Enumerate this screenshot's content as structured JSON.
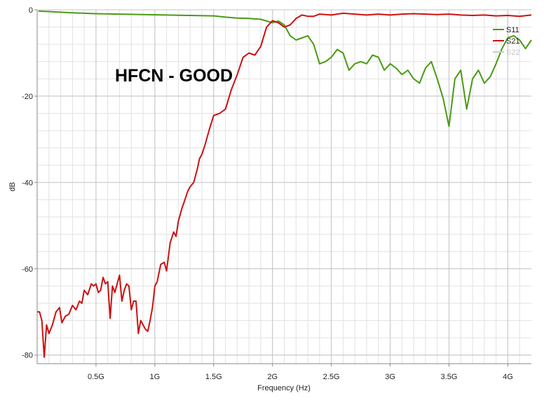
{
  "chart_data": {
    "type": "line",
    "annotation": "HFCN - GOOD",
    "xlabel": "Frequency (Hz)",
    "ylabel": "dB",
    "xlim": [
      0,
      4.2
    ],
    "ylim": [
      -82,
      0
    ],
    "xticks": [
      {
        "v": 0.5,
        "label": "0.5G"
      },
      {
        "v": 1.0,
        "label": "1G"
      },
      {
        "v": 1.5,
        "label": "1.5G"
      },
      {
        "v": 2.0,
        "label": "2G"
      },
      {
        "v": 2.5,
        "label": "2.5G"
      },
      {
        "v": 3.0,
        "label": "3G"
      },
      {
        "v": 3.5,
        "label": "3.5G"
      },
      {
        "v": 4.0,
        "label": "4G"
      }
    ],
    "yticks": [
      {
        "v": 0,
        "label": "0"
      },
      {
        "v": -20,
        "label": "-20"
      },
      {
        "v": -40,
        "label": "-40"
      },
      {
        "v": -60,
        "label": "-60"
      },
      {
        "v": -80,
        "label": "-80"
      }
    ],
    "grid": true,
    "legend_position": "top-right",
    "series": [
      {
        "name": "S11",
        "color": "#4a9a14",
        "visible": true,
        "x": [
          0.01,
          0.1,
          0.3,
          0.5,
          0.7,
          0.9,
          1.1,
          1.3,
          1.5,
          1.6,
          1.7,
          1.8,
          1.9,
          2.0,
          2.05,
          2.1,
          2.15,
          2.2,
          2.25,
          2.3,
          2.35,
          2.4,
          2.45,
          2.5,
          2.55,
          2.6,
          2.65,
          2.7,
          2.75,
          2.8,
          2.85,
          2.9,
          2.95,
          3.0,
          3.05,
          3.1,
          3.15,
          3.2,
          3.25,
          3.3,
          3.35,
          3.4,
          3.45,
          3.5,
          3.55,
          3.6,
          3.65,
          3.7,
          3.75,
          3.8,
          3.85,
          3.9,
          3.95,
          4.0,
          4.05,
          4.1,
          4.15,
          4.2
        ],
        "y": [
          -0.3,
          -0.4,
          -0.7,
          -0.9,
          -1.0,
          -1.1,
          -1.2,
          -1.3,
          -1.4,
          -1.7,
          -1.9,
          -2.0,
          -2.2,
          -3.0,
          -2.6,
          -3.5,
          -6.0,
          -7.0,
          -6.5,
          -6.0,
          -8.0,
          -12.5,
          -12.0,
          -11.0,
          -9.2,
          -10.0,
          -14.0,
          -12.5,
          -12.0,
          -12.5,
          -10.5,
          -11.0,
          -14.0,
          -12.5,
          -13.5,
          -15.0,
          -14.0,
          -16.0,
          -17.0,
          -13.5,
          -12.0,
          -16.0,
          -20.5,
          -27.0,
          -16.0,
          -14.0,
          -23.0,
          -16.0,
          -14.0,
          -17.0,
          -15.5,
          -12.5,
          -9.0,
          -6.5,
          -6.0,
          -7.0,
          -9.0,
          -7.0
        ]
      },
      {
        "name": "S21",
        "color": "#cc1111",
        "visible": true,
        "x": [
          0.0,
          0.02,
          0.04,
          0.06,
          0.08,
          0.1,
          0.13,
          0.16,
          0.19,
          0.21,
          0.24,
          0.27,
          0.3,
          0.33,
          0.36,
          0.38,
          0.4,
          0.43,
          0.46,
          0.48,
          0.5,
          0.52,
          0.54,
          0.56,
          0.58,
          0.6,
          0.62,
          0.64,
          0.66,
          0.68,
          0.7,
          0.72,
          0.74,
          0.76,
          0.78,
          0.8,
          0.82,
          0.84,
          0.86,
          0.88,
          0.9,
          0.92,
          0.94,
          0.96,
          0.98,
          1.0,
          1.02,
          1.05,
          1.08,
          1.1,
          1.13,
          1.16,
          1.18,
          1.2,
          1.23,
          1.25,
          1.28,
          1.3,
          1.33,
          1.36,
          1.38,
          1.4,
          1.43,
          1.46,
          1.5,
          1.55,
          1.6,
          1.65,
          1.7,
          1.75,
          1.8,
          1.85,
          1.9,
          1.95,
          2.0,
          2.05,
          2.1,
          2.15,
          2.2,
          2.25,
          2.3,
          2.35,
          2.4,
          2.5,
          2.6,
          2.7,
          2.8,
          2.9,
          3.0,
          3.1,
          3.2,
          3.3,
          3.4,
          3.5,
          3.6,
          3.7,
          3.8,
          3.9,
          4.0,
          4.1,
          4.2
        ],
        "y": [
          -70.0,
          -70.0,
          -72.0,
          -80.5,
          -73.0,
          -75.0,
          -73.0,
          -70.0,
          -69.0,
          -72.5,
          -71.0,
          -70.5,
          -68.5,
          -69.5,
          -67.5,
          -68.0,
          -65.0,
          -66.0,
          -63.5,
          -64.0,
          -63.5,
          -65.5,
          -65.0,
          -62.0,
          -63.5,
          -63.0,
          -71.5,
          -64.0,
          -65.5,
          -63.5,
          -61.5,
          -67.5,
          -65.0,
          -63.5,
          -64.0,
          -69.5,
          -67.5,
          -67.5,
          -75.0,
          -72.0,
          -73.0,
          -74.0,
          -74.5,
          -72.0,
          -69.0,
          -64.0,
          -63.0,
          -59.0,
          -58.5,
          -60.5,
          -54.0,
          -51.5,
          -52.5,
          -49.0,
          -46.0,
          -44.5,
          -42.0,
          -41.0,
          -40.0,
          -37.0,
          -34.5,
          -33.5,
          -31.0,
          -28.0,
          -24.5,
          -24.0,
          -23.0,
          -18.5,
          -15.0,
          -11.0,
          -10.0,
          -10.5,
          -8.5,
          -4.0,
          -2.5,
          -3.0,
          -4.0,
          -3.5,
          -2.0,
          -1.2,
          -1.5,
          -1.5,
          -1.0,
          -1.2,
          -0.8,
          -1.0,
          -1.2,
          -1.0,
          -1.2,
          -1.0,
          -0.9,
          -1.0,
          -1.1,
          -1.0,
          -1.2,
          -1.3,
          -1.2,
          -1.4,
          -1.3,
          -1.5,
          -1.2
        ]
      },
      {
        "name": "S22",
        "color": "#cccccc",
        "visible": false,
        "x": [],
        "y": []
      }
    ]
  }
}
